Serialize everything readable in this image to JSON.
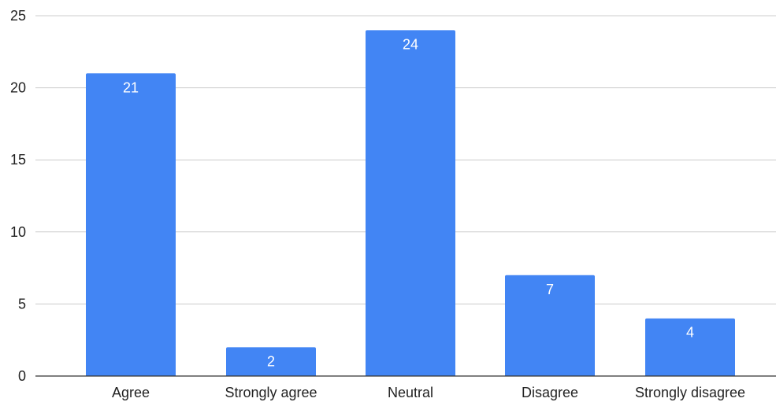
{
  "chart_data": {
    "type": "bar",
    "categories": [
      "Agree",
      "Strongly agree",
      "Neutral",
      "Disagree",
      "Strongly disagree"
    ],
    "values": [
      21,
      2,
      24,
      7,
      4
    ],
    "data_labels": [
      "21",
      "2",
      "24",
      "7",
      "4"
    ],
    "yticks": [
      "0",
      "5",
      "10",
      "15",
      "20",
      "25"
    ],
    "ylim": [
      0,
      25
    ],
    "grid": true,
    "legend": "none",
    "colors": {
      "bar": "#4285f4",
      "grid": "#cccccc",
      "axis": "#333333",
      "label": "#ffffff"
    }
  }
}
